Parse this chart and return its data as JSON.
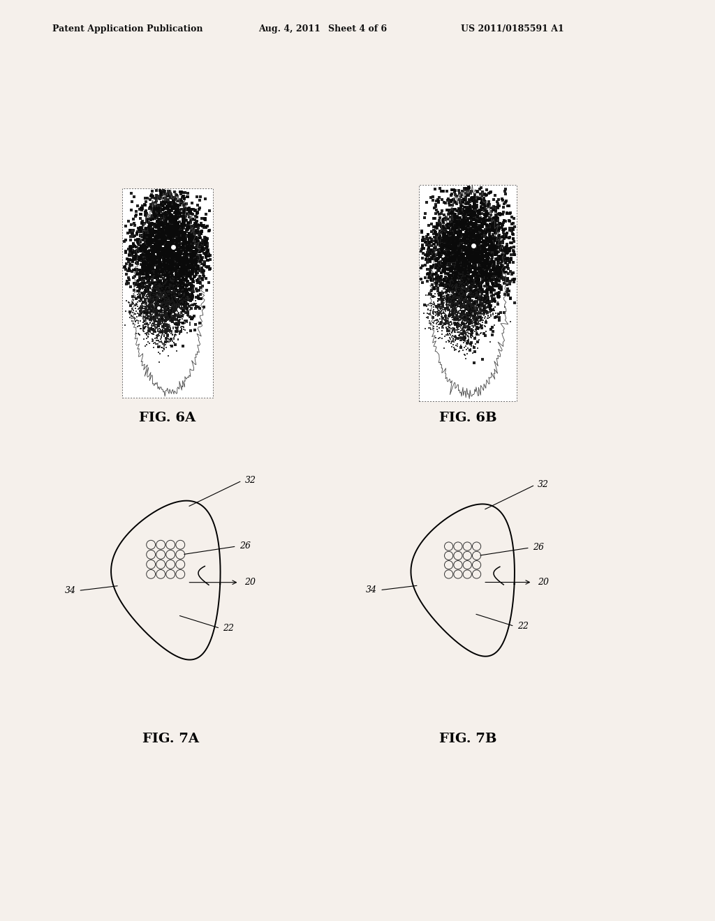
{
  "bg_color": "#f5f0eb",
  "header_text": "Patent Application Publication",
  "header_date": "Aug. 4, 2011",
  "header_sheet": "Sheet 4 of 6",
  "header_patent": "US 2011/0185591 A1",
  "fig6a_label": "FIG. 6A",
  "fig6b_label": "FIG. 6B",
  "fig7a_label": "FIG. 7A",
  "fig7b_label": "FIG. 7B"
}
